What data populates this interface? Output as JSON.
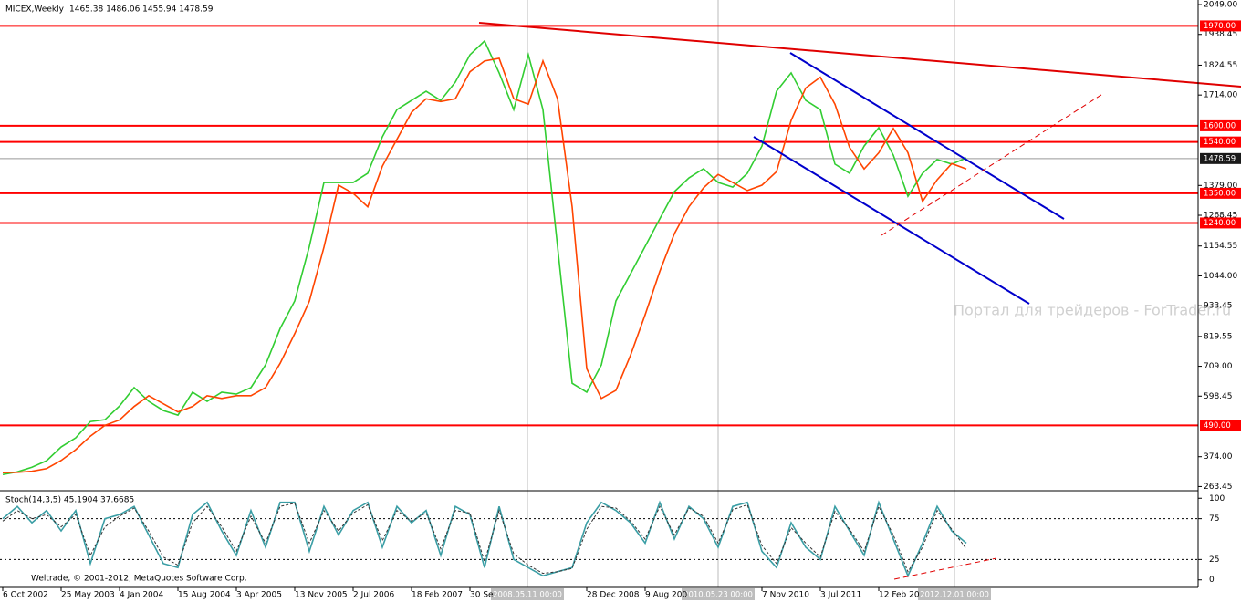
{
  "chart_data": [
    {
      "type": "line",
      "title": "MICEX,Weekly",
      "quote": "1465.38 1486.06 1455.94 1478.59",
      "categories": [
        "6 Oct 2002",
        null,
        null,
        null,
        "25 May 2003",
        null,
        null,
        null,
        "4 Jan 2004",
        null,
        null,
        null,
        "15 Aug 2004",
        null,
        null,
        null,
        "3 Apr 2005",
        null,
        null,
        null,
        "13 Nov 2005",
        null,
        null,
        null,
        "2 Jul 2006",
        null,
        null,
        null,
        "18 Feb 2007",
        null,
        null,
        null,
        "30 Se",
        null,
        null,
        null,
        null,
        null,
        null,
        null,
        "28 Dec 2008",
        null,
        null,
        null,
        "9 Aug 200",
        null,
        null,
        null,
        null,
        null,
        null,
        null,
        "7 Nov 2010",
        null,
        null,
        null,
        "3 Jul 2011",
        null,
        null,
        null,
        "12 Feb 20",
        null,
        null,
        null,
        null,
        null,
        null
      ],
      "series": [
        {
          "color": "#32cd32",
          "values": [
            308,
            318,
            335,
            359,
            410,
            444,
            504,
            511,
            562,
            630,
            579,
            545,
            528,
            613,
            579,
            613,
            606,
            630,
            714,
            849,
            951,
            1153,
            1390,
            1390,
            1390,
            1424,
            1559,
            1660,
            1694,
            1728,
            1694,
            1762,
            1863,
            1914,
            1796,
            1660,
            1863,
            1660,
            1153,
            646,
            613,
            714,
            951,
            1052,
            1153,
            1255,
            1356,
            1407,
            1441,
            1390,
            1373,
            1424,
            1525,
            1728,
            1796,
            1694,
            1660,
            1458,
            1424,
            1525,
            1593,
            1491,
            1339,
            1424,
            1475,
            1458,
            1481
          ]
        },
        {
          "color": "#ff4500",
          "values": [
            315,
            316,
            320,
            330,
            360,
            400,
            450,
            490,
            510,
            560,
            600,
            570,
            540,
            560,
            600,
            590,
            600,
            600,
            630,
            720,
            830,
            950,
            1150,
            1380,
            1350,
            1300,
            1450,
            1550,
            1650,
            1700,
            1690,
            1700,
            1800,
            1840,
            1850,
            1700,
            1680,
            1840,
            1700,
            1300,
            700,
            590,
            620,
            750,
            900,
            1060,
            1200,
            1300,
            1370,
            1420,
            1390,
            1360,
            1380,
            1430,
            1620,
            1740,
            1780,
            1680,
            1520,
            1440,
            1500,
            1590,
            1500,
            1320,
            1400,
            1460,
            1440
          ]
        }
      ],
      "ylim": [
        248,
        2066
      ],
      "yticks": [
        {
          "value": 2049,
          "label": "2049.00"
        },
        1938.45,
        1824.55,
        {
          "value": 1714,
          "label": "1714.00"
        },
        {
          "value": 1379,
          "label": "1379.00"
        },
        1268.45,
        1154.55,
        {
          "value": 1044,
          "label": "1044.00"
        },
        933.45,
        819.55,
        {
          "value": 709,
          "label": "709.00"
        },
        598.45,
        {
          "value": 374,
          "label": "374.00"
        },
        263.45
      ],
      "levels": [
        {
          "value": 1970,
          "label": "1970.00"
        },
        {
          "value": 1600,
          "label": "1600.00"
        },
        {
          "value": 1540,
          "label": "1540.00"
        },
        {
          "value": 1350,
          "label": "1350.00"
        },
        {
          "value": 1240,
          "label": "1240.00"
        },
        {
          "value": 490,
          "label": "490.00"
        }
      ],
      "level_color": "#ff0000",
      "current": {
        "value": 1478.59,
        "label": "1478.59"
      },
      "cursors": [
        "2008.05.11 00:00",
        "2010.05.23 00:00",
        "2012.12.01 00:00"
      ],
      "grid": false
    },
    {
      "type": "line",
      "title": "Stoch(14,3,5) 45.1904 37.6685",
      "series": [
        {
          "color": "#3a9ea5",
          "values": [
            75,
            90,
            70,
            85,
            60,
            85,
            20,
            75,
            80,
            90,
            55,
            20,
            15,
            80,
            95,
            60,
            30,
            85,
            40,
            95,
            95,
            35,
            90,
            55,
            85,
            95,
            40,
            90,
            70,
            85,
            30,
            90,
            80,
            15,
            90,
            25,
            15,
            5,
            10,
            15,
            70,
            95,
            85,
            70,
            45,
            95,
            50,
            90,
            75,
            40,
            90,
            95,
            35,
            15,
            70,
            40,
            25,
            90,
            60,
            30,
            95,
            50,
            5,
            45,
            90,
            60,
            45
          ]
        },
        {
          "color": "#333333",
          "dashed": true,
          "values": [
            72,
            85,
            75,
            80,
            65,
            80,
            30,
            65,
            78,
            88,
            60,
            28,
            18,
            70,
            90,
            65,
            35,
            78,
            45,
            90,
            94,
            45,
            85,
            60,
            82,
            92,
            48,
            85,
            72,
            82,
            38,
            85,
            82,
            22,
            85,
            32,
            18,
            8,
            10,
            14,
            62,
            90,
            88,
            72,
            50,
            90,
            55,
            88,
            78,
            45,
            86,
            92,
            42,
            20,
            64,
            45,
            28,
            84,
            62,
            35,
            90,
            55,
            10,
            40,
            85,
            62,
            38
          ]
        }
      ],
      "ylim": [
        -7,
        107
      ],
      "yticks": [
        100,
        75,
        25,
        0
      ]
    }
  ],
  "watermark": "Портал для трейдеров - ForTrader.ru",
  "footer": "Weltrade, © 2001-2012, MetaQuotes Software Corp."
}
